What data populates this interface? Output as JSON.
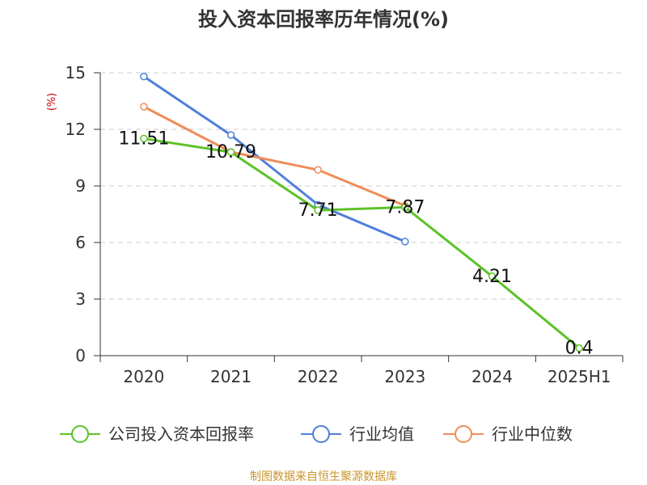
{
  "chart_data": {
    "type": "line",
    "title": "投入资本回报率历年情况(%)",
    "ylabel": "(%)",
    "categories": [
      "2020",
      "2021",
      "2022",
      "2023",
      "2024",
      "2025H1"
    ],
    "ylim": [
      0,
      15
    ],
    "yticks": [
      0,
      3,
      6,
      9,
      12,
      15
    ],
    "grid": true,
    "legend_position": "bottom",
    "series": [
      {
        "name": "公司投入资本回报率",
        "color": "#5cc229",
        "values": [
          11.51,
          10.79,
          7.71,
          7.87,
          4.21,
          0.4
        ],
        "labels": [
          "11.51",
          "10.79",
          "7.71",
          "7.87",
          "4.21",
          "0.4"
        ]
      },
      {
        "name": "行业均值",
        "color": "#4f7fdb",
        "values": [
          14.8,
          11.7,
          8.0,
          6.05,
          null,
          null
        ]
      },
      {
        "name": "行业中位数",
        "color": "#f08c57",
        "values": [
          13.2,
          10.8,
          9.85,
          7.95,
          null,
          null
        ]
      }
    ]
  },
  "source": "制图数据来自恒生聚源数据库"
}
